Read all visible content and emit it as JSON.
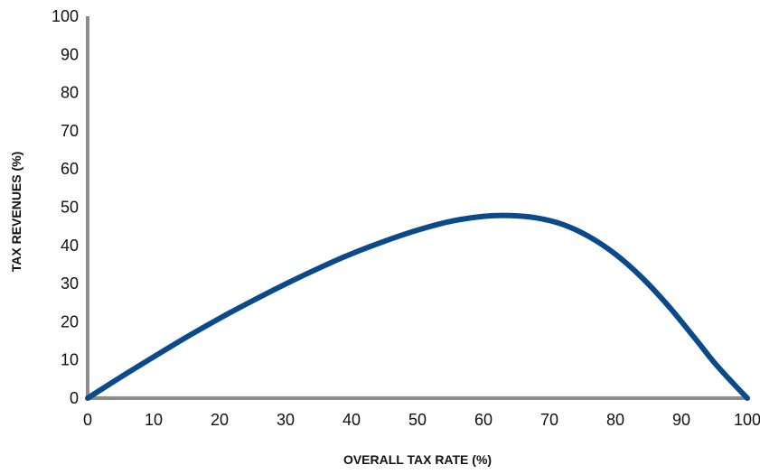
{
  "chart_data": {
    "type": "line",
    "title": "",
    "xlabel": "OVERALL TAX RATE (%)",
    "ylabel": "TAX REVENUES (%)",
    "xlim": [
      0,
      100
    ],
    "ylim": [
      0,
      100
    ],
    "x_ticks": [
      0,
      10,
      20,
      30,
      40,
      50,
      60,
      70,
      80,
      90,
      100
    ],
    "y_ticks": [
      0,
      10,
      20,
      30,
      40,
      50,
      60,
      70,
      80,
      90,
      100
    ],
    "grid": false,
    "legend": "none",
    "colors": {
      "axis": "#8c8c8c",
      "curve": "#0a4a8a"
    },
    "series": [
      {
        "x": [
          0,
          5,
          10,
          15,
          20,
          25,
          30,
          35,
          40,
          45,
          50,
          55,
          60,
          64,
          68,
          72,
          76,
          80,
          84,
          88,
          92,
          95,
          98,
          100
        ],
        "y": [
          0,
          5.5,
          10.8,
          16,
          20.9,
          25.5,
          29.9,
          34,
          37.8,
          41.1,
          44,
          46.3,
          47.6,
          47.8,
          47.2,
          45.5,
          42.3,
          37.7,
          31.6,
          24.2,
          15.8,
          9.3,
          3.6,
          0
        ]
      }
    ]
  }
}
